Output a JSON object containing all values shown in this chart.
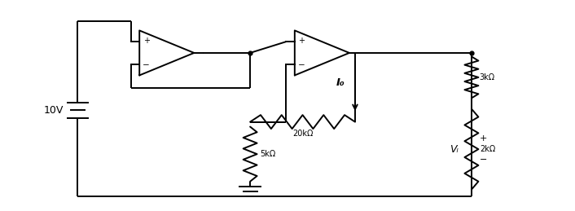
{
  "bg_color": "#ffffff",
  "line_color": "#000000",
  "line_width": 1.4,
  "fig_width": 7.06,
  "fig_height": 2.59,
  "dpi": 100,
  "labels": {
    "voltage_source": "10V",
    "r1": "20kΩ",
    "r2": "5kΩ",
    "r3": "3kΩ",
    "r4": "2kΩ",
    "current": "I₀",
    "vl_plus": "+",
    "vl_minus": "−",
    "vl": "Vₗ"
  }
}
